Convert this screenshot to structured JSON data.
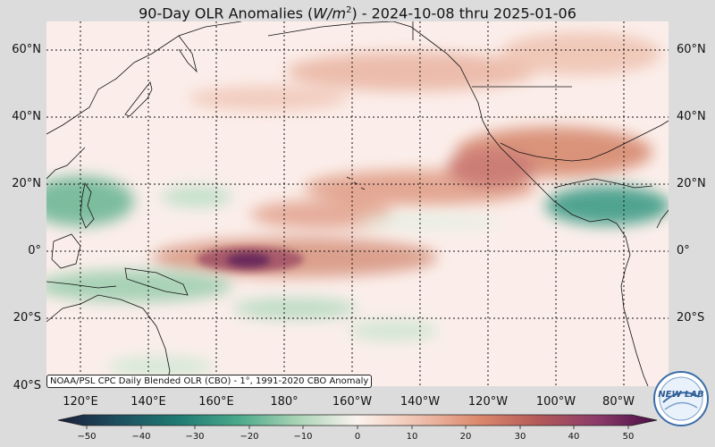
{
  "title": {
    "prefix": "90-Day OLR Anomalies (",
    "unit_base": "W/m",
    "unit_exp": "2",
    "suffix": ") - 2024-10-08 thru 2025-01-06"
  },
  "lat_labels": [
    "60°N",
    "40°N",
    "20°N",
    "0°",
    "20°S",
    "40°S"
  ],
  "lon_labels": [
    "120°E",
    "140°E",
    "160°E",
    "180°",
    "160°W",
    "140°W",
    "120°W",
    "100°W",
    "80°W"
  ],
  "source_note": "NOAA/PSL CPC Daily Blended OLR (CBO) - 1°, 1991-2020 CBO Anomaly",
  "colorbar": {
    "ticks": [
      "−50",
      "−40",
      "−30",
      "−20",
      "−10",
      "0",
      "10",
      "20",
      "30",
      "40",
      "50"
    ],
    "colors": [
      "#1a1f3a",
      "#1d4f5f",
      "#1f7a73",
      "#4aa88a",
      "#a9d4b5",
      "#fbf3ef",
      "#efc2b0",
      "#dc8a6d",
      "#b45a58",
      "#8c3a6a",
      "#4a0d46"
    ]
  },
  "logo": {
    "text": "NEW LAB",
    "icon": "noaa-globe-icon"
  }
}
